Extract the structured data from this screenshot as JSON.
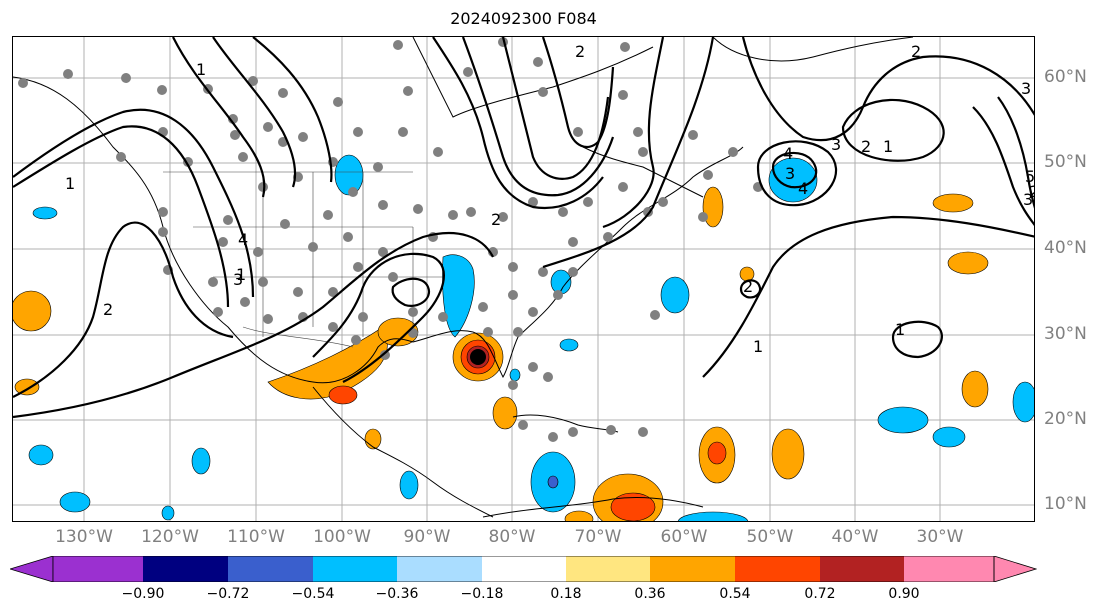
{
  "title": "2024092300 F084",
  "map": {
    "longitude_labels": [
      "130°W",
      "120°W",
      "110°W",
      "100°W",
      "90°W",
      "80°W",
      "70°W",
      "60°W",
      "50°W",
      "40°W",
      "30°W"
    ],
    "latitude_labels": [
      "60°N",
      "50°N",
      "40°N",
      "30°N",
      "20°N",
      "10°N"
    ],
    "contour_labels": [
      "1",
      "2",
      "3",
      "4",
      "1",
      "2",
      "3",
      "2",
      "1",
      "2",
      "3",
      "4",
      "5",
      "1",
      "2",
      "3",
      "2",
      "1",
      "3",
      "2",
      "1",
      "4"
    ]
  },
  "colorbar": {
    "tick_labels": [
      "−0.90",
      "−0.72",
      "−0.54",
      "−0.36",
      "−0.18",
      "0.18",
      "0.36",
      "0.54",
      "0.72",
      "0.90"
    ],
    "colors": [
      "#9b30d0",
      "#000080",
      "#3a5fcd",
      "#00bfff",
      "#aaddff",
      "#ffffff",
      "#ffe680",
      "#ffa500",
      "#ff4500",
      "#b22222",
      "#ff88b0"
    ]
  },
  "legend_colors": {
    "storm_center": "#000000",
    "observation_dots": "#808080"
  }
}
